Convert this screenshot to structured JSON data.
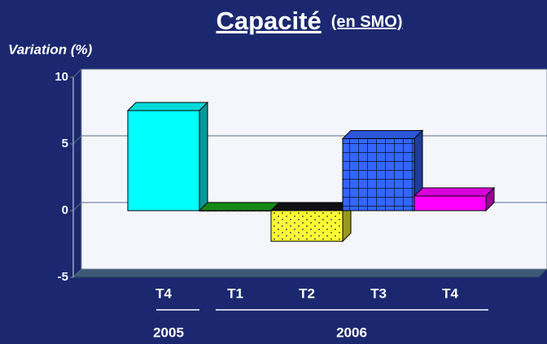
{
  "chart_data": {
    "type": "bar3d",
    "title": "Capacité",
    "subtitle": "(en SMO)",
    "y_axis_label": "Variation (%)",
    "categories": [
      "T4",
      "T1",
      "T2",
      "T3",
      "T4"
    ],
    "category_groups": [
      "2005",
      "2006"
    ],
    "values": [
      7.5,
      0,
      -2.3,
      5.4,
      1.1
    ],
    "colors": [
      "#00ffff",
      "#1aa01a",
      "#ffff33",
      "#3366ff",
      "#ff00ff"
    ],
    "patterns": [
      "solid",
      "zigzag",
      "dots",
      "grid",
      "solid"
    ],
    "ylim": [
      -5,
      10
    ],
    "yticks": [
      -5,
      0,
      5,
      10
    ],
    "grid": true
  }
}
